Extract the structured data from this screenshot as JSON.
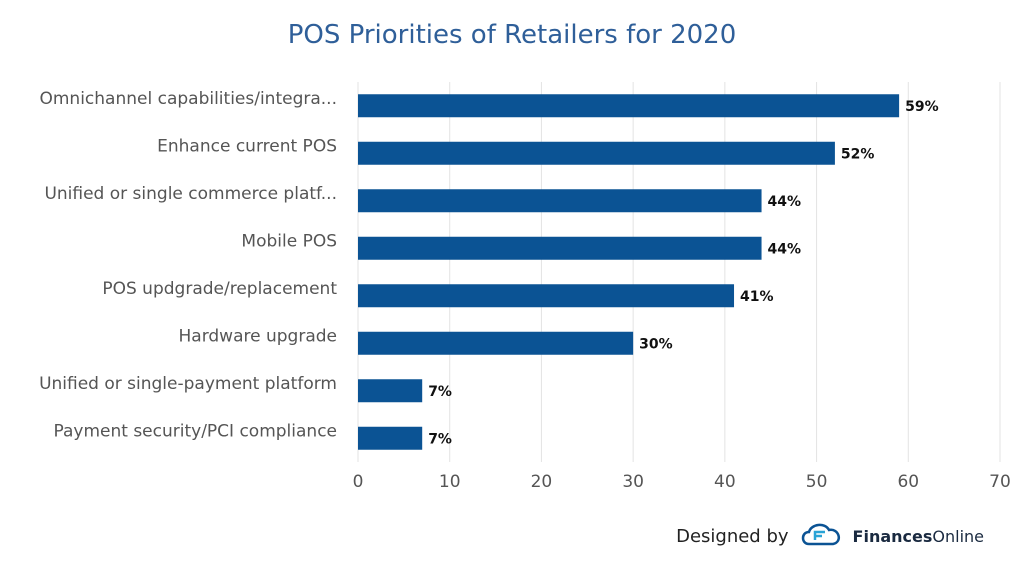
{
  "chart_data": {
    "type": "bar",
    "orientation": "horizontal",
    "title": "POS Priorities of Retailers for 2020",
    "categories": [
      "Omnichannel capabilities/integra...",
      "Enhance current POS",
      "Unified or single commerce platf...",
      "Mobile POS",
      "POS updgrade/replacement",
      "Hardware upgrade",
      "Unified or single-payment platform",
      "Payment security/PCI compliance"
    ],
    "values": [
      59,
      52,
      44,
      44,
      41,
      30,
      7,
      7
    ],
    "data_labels": [
      "59%",
      "52%",
      "44%",
      "44%",
      "41%",
      "30%",
      "7%",
      "7%"
    ],
    "xlim": [
      0,
      70
    ],
    "x_ticks": [
      0,
      10,
      20,
      30,
      40,
      50,
      60,
      70
    ],
    "grid": true,
    "bar_color": "#0b5394"
  },
  "footer": {
    "designed_by": "Designed by",
    "brand_bold": "Finances",
    "brand_regular": "Online"
  },
  "colors": {
    "title": "#2f5f99",
    "grid": "#e3e3e3",
    "label": "#555555",
    "logo": "#0b5394"
  }
}
